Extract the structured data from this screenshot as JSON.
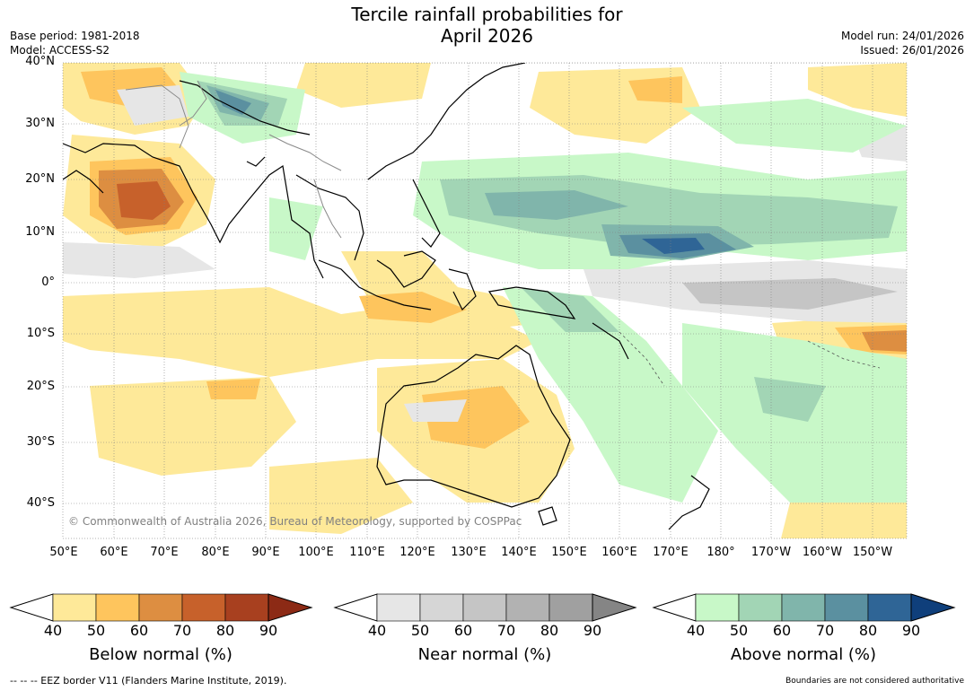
{
  "title": "Tercile rainfall probabilities for",
  "subtitle": "April 2026",
  "meta_left": [
    "Base period: 1981-2018",
    "Model: ACCESS-S2"
  ],
  "meta_right": [
    "Model run: 24/01/2026",
    "Issued: 26/01/2026"
  ],
  "lat_labels": [
    "40°N",
    "30°N",
    "20°N",
    "10°N",
    "0°",
    "10°S",
    "20°S",
    "30°S",
    "40°S"
  ],
  "lon_labels": [
    "50°E",
    "60°E",
    "70°E",
    "80°E",
    "90°E",
    "100°E",
    "110°E",
    "120°E",
    "130°E",
    "140°E",
    "150°E",
    "160°E",
    "170°E",
    "180°",
    "170°W",
    "160°W",
    "150°W"
  ],
  "copyright": "© Commonwealth of Australia 2026, Bureau of Meteorology, supported by COSPPac",
  "colorbars": [
    {
      "title": "Below normal (%)",
      "ticks": [
        "40",
        "50",
        "60",
        "70",
        "80",
        "90"
      ],
      "colors": [
        "#ffffff",
        "#fee999",
        "#fec55d",
        "#dd8e41",
        "#c7612b",
        "#a8401f",
        "#8c2a15"
      ]
    },
    {
      "title": "Near normal (%)",
      "ticks": [
        "40",
        "50",
        "60",
        "70",
        "80",
        "90"
      ],
      "colors": [
        "#ffffff",
        "#e6e6e6",
        "#d6d6d6",
        "#c5c5c5",
        "#b2b2b2",
        "#a0a0a0",
        "#858585"
      ]
    },
    {
      "title": "Above normal (%)",
      "ticks": [
        "40",
        "50",
        "60",
        "70",
        "80",
        "90"
      ],
      "colors": [
        "#ffffff",
        "#c8f8c8",
        "#a2d5b5",
        "#80b5ab",
        "#5b90a0",
        "#2f6596",
        "#0f3f7b"
      ]
    }
  ],
  "footer_left": "--  --  -- EEZ border V11 (Flanders Marine Institute, 2019).",
  "footer_right": "Boundaries are not considered authoritative"
}
